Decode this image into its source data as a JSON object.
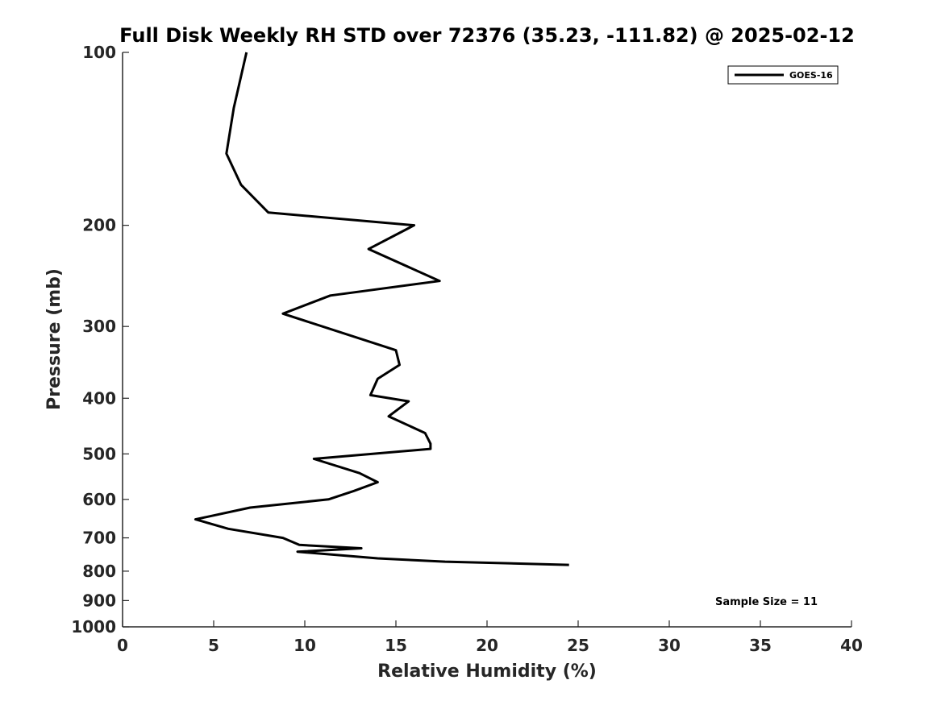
{
  "chart_data": {
    "type": "line",
    "title": "Full Disk Weekly RH STD over 72376 (35.23, -111.82) @ 2025-02-12",
    "xlabel": "Relative Humidity (%)",
    "ylabel": "Pressure (mb)",
    "xlim": [
      0,
      40
    ],
    "ylim": [
      100,
      1000
    ],
    "y_scale": "log",
    "y_reversed": true,
    "grid": false,
    "x_ticks": [
      "0",
      "5",
      "10",
      "15",
      "20",
      "25",
      "30",
      "35",
      "40"
    ],
    "y_ticks": [
      "100",
      "200",
      "300",
      "400",
      "500",
      "600",
      "700",
      "800",
      "900",
      "1000"
    ],
    "legend_position": "top-right",
    "line_color": "#000000",
    "series": [
      {
        "name": "GOES-16",
        "x": [
          6.8,
          6.1,
          5.7,
          6.5,
          8.0,
          16.0,
          13.5,
          17.4,
          11.4,
          8.8,
          15.0,
          15.2,
          14.0,
          13.6,
          15.7,
          14.6,
          16.6,
          16.9,
          16.9,
          10.5,
          13.0,
          14.0,
          12.7,
          11.3,
          7.0,
          4.0,
          5.8,
          8.8,
          9.7,
          13.1,
          9.6,
          14.0,
          17.7,
          24.5
        ],
        "y": [
          100,
          125,
          150,
          170,
          190,
          200,
          220,
          250,
          265,
          285,
          330,
          350,
          370,
          395,
          405,
          430,
          460,
          480,
          490,
          510,
          540,
          560,
          580,
          600,
          620,
          650,
          675,
          700,
          720,
          730,
          740,
          760,
          770,
          780
        ]
      }
    ],
    "annotation": "Sample Size = 11"
  }
}
